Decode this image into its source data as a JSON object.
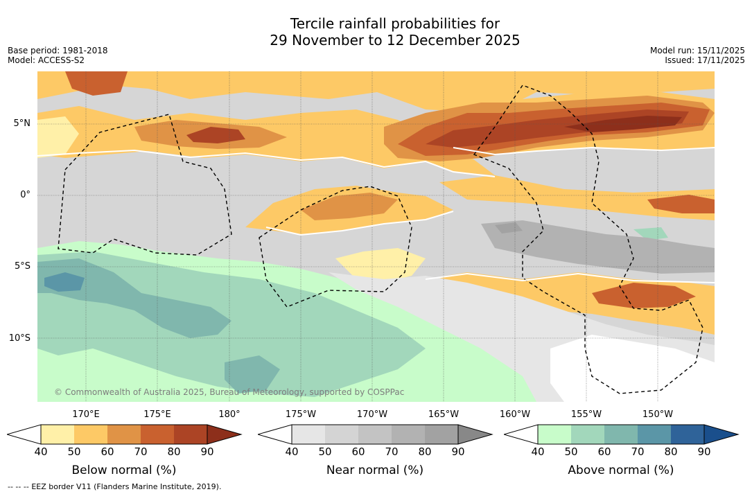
{
  "header": {
    "title_line1": "Tercile rainfall probabilities for",
    "title_line2": "29 November to 12 December 2025",
    "base_period": "Base period: 1981-2018",
    "model": "Model: ACCESS-S2",
    "model_run": "Model run: 15/11/2025",
    "issued": "Issued: 17/11/2025"
  },
  "map": {
    "lat_labels": [
      "5°N",
      "0°",
      "5°S",
      "10°S"
    ],
    "lon_labels": [
      "170°E",
      "175°E",
      "180°",
      "175°W",
      "170°W",
      "165°W",
      "160°W",
      "155°W",
      "150°W"
    ],
    "credit": "© Commonwealth of Australia 2025, Bureau of Meteorology, supported by COSPPac"
  },
  "colorbars": [
    {
      "name": "below",
      "title": "Below normal (%)",
      "ticks": [
        "40",
        "50",
        "60",
        "70",
        "80",
        "90"
      ],
      "colors": [
        "#fff0a8",
        "#fdc966",
        "#e09346",
        "#c9612f",
        "#ac4425",
        "#8d2f1b"
      ]
    },
    {
      "name": "near",
      "title": "Near normal (%)",
      "ticks": [
        "40",
        "50",
        "60",
        "70",
        "80",
        "90"
      ],
      "colors": [
        "#e6e6e6",
        "#d4d4d4",
        "#c3c3c3",
        "#b2b2b2",
        "#a2a2a2",
        "#888888"
      ]
    },
    {
      "name": "above",
      "title": "Above normal (%)",
      "ticks": [
        "40",
        "50",
        "60",
        "70",
        "80",
        "90"
      ],
      "colors": [
        "#c8fcca",
        "#a2d7bb",
        "#80b7ad",
        "#5b96a7",
        "#2f6399",
        "#1a4f8c"
      ]
    }
  ],
  "footer": {
    "legend_symbol": "--  --  --",
    "eez_text": "EEZ border V11 (Flanders Marine Institute, 2019)."
  }
}
